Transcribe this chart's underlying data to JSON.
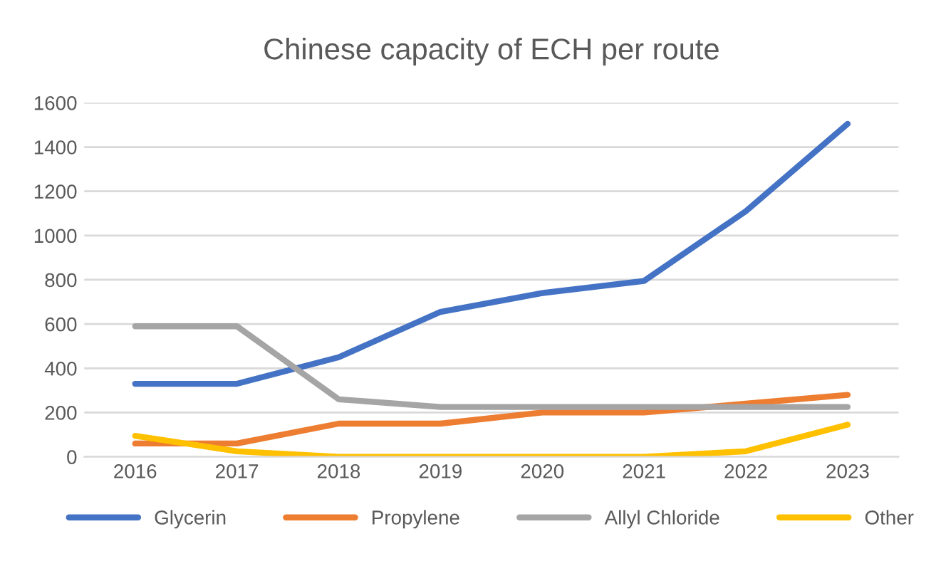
{
  "chart_data": {
    "type": "line",
    "title": "Chinese capacity of ECH per route",
    "categories": [
      "2016",
      "2017",
      "2018",
      "2019",
      "2020",
      "2021",
      "2022",
      "2023"
    ],
    "series": [
      {
        "name": "Glycerin",
        "color": "#4472c4",
        "values": [
          330,
          330,
          450,
          655,
          740,
          795,
          1110,
          1505
        ]
      },
      {
        "name": "Propylene",
        "color": "#ed7d31",
        "values": [
          60,
          60,
          150,
          150,
          200,
          200,
          240,
          280
        ]
      },
      {
        "name": "Allyl Chloride",
        "color": "#a5a5a5",
        "values": [
          590,
          590,
          260,
          225,
          225,
          225,
          225,
          225
        ]
      },
      {
        "name": "Other",
        "color": "#ffc000",
        "values": [
          95,
          25,
          0,
          0,
          0,
          0,
          25,
          145
        ]
      }
    ],
    "ylim": [
      0,
      1600
    ],
    "yticks": [
      0,
      200,
      400,
      600,
      800,
      1000,
      1200,
      1400,
      1600
    ],
    "grid": "y",
    "legend": "bottom",
    "marker": "none",
    "line_style": "solid"
  }
}
